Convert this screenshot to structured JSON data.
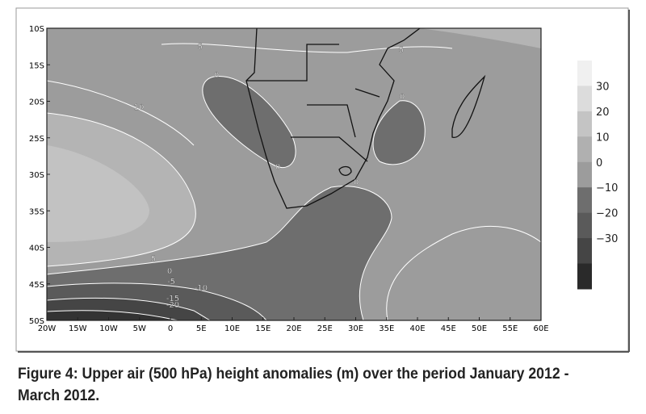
{
  "map": {
    "lat_labels": [
      "10S",
      "15S",
      "20S",
      "25S",
      "30S",
      "35S",
      "40S",
      "45S",
      "50S"
    ],
    "lon_labels": [
      "20W",
      "15W",
      "10W",
      "5W",
      "0",
      "5E",
      "10E",
      "15E",
      "20E",
      "25E",
      "30E",
      "35E",
      "40E",
      "45E",
      "50E",
      "55E",
      "60E"
    ],
    "contour_labels": [
      "5",
      "0",
      "5",
      "10",
      "0",
      "0",
      "0",
      "5",
      "0",
      "-5",
      "-10",
      "-15",
      "-20"
    ]
  },
  "colorbar": {
    "labels": [
      "30",
      "20",
      "10",
      "0",
      "−10",
      "−20",
      "−30"
    ]
  },
  "caption": "Figure 4: Upper air (500 hPa) height anomalies (m) over the period January 2012 - March 2012."
}
